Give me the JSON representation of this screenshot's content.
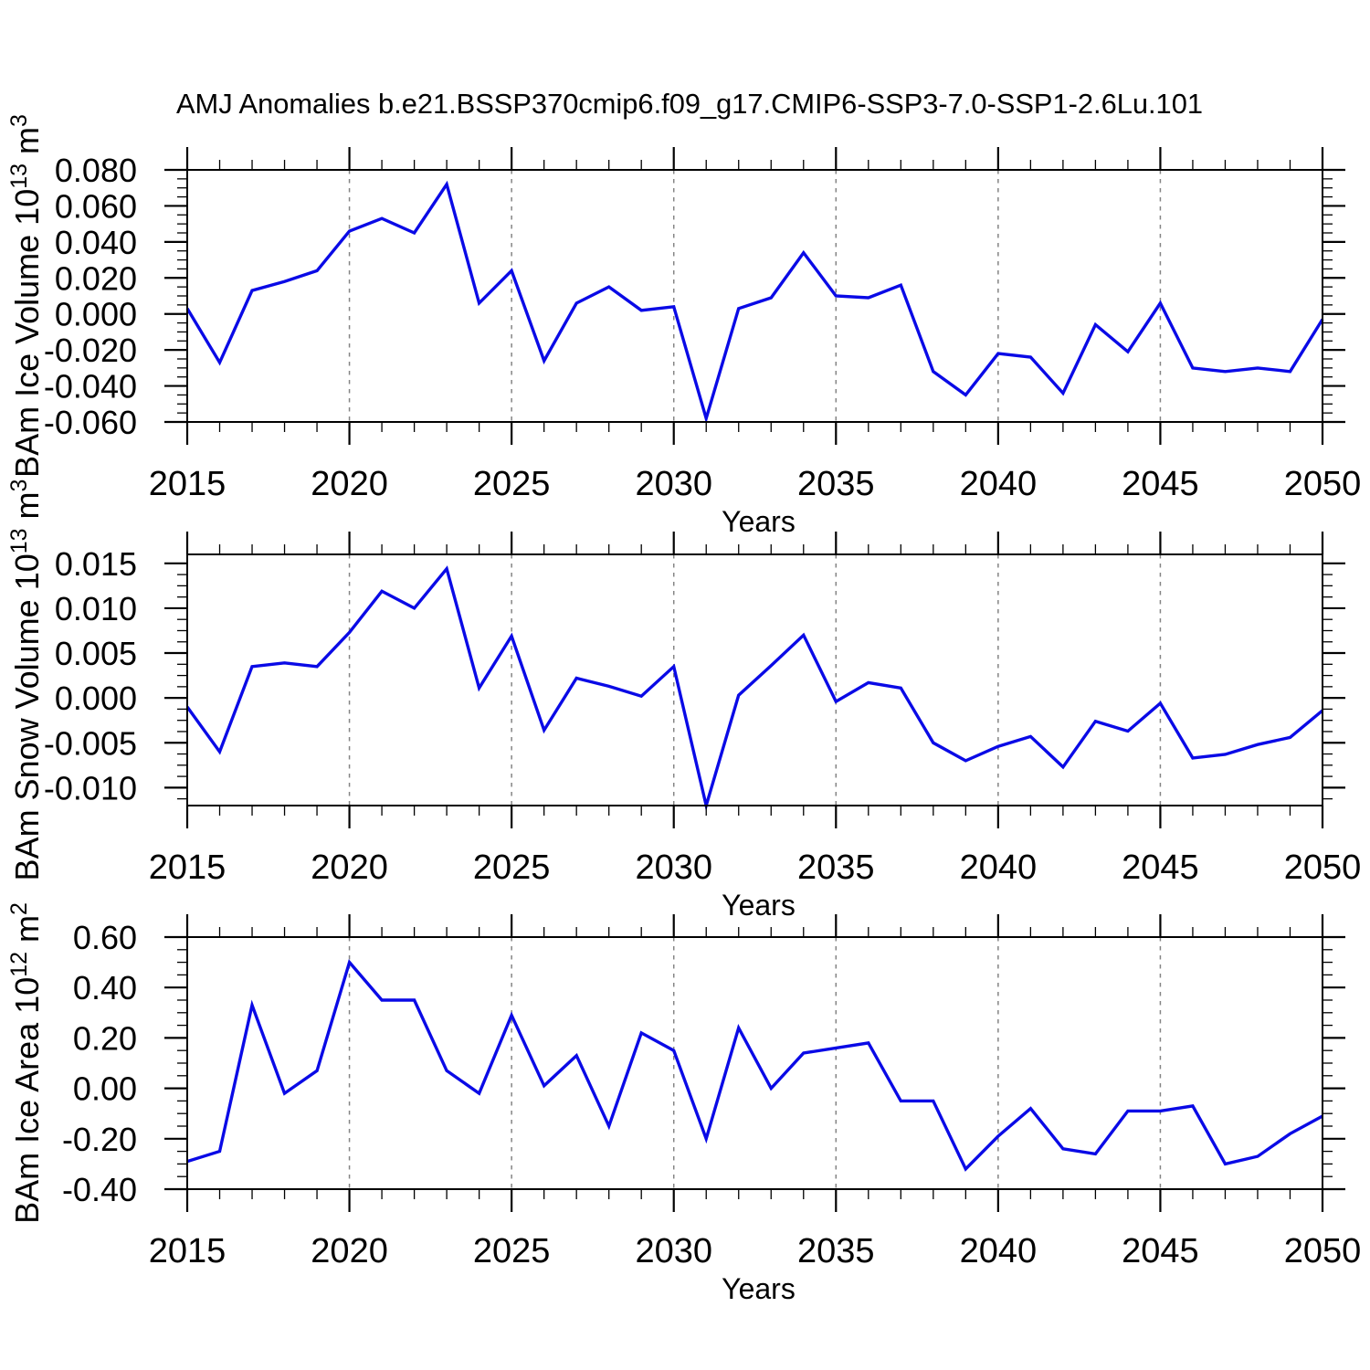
{
  "title": "AMJ Anomalies b.e21.BSSP370cmip6.f09_g17.CMIP6-SSP3-7.0-SSP1-2.6Lu.101",
  "colors": {
    "line": "#0a0ae6",
    "grid": "#848484",
    "axis": "#000000"
  },
  "xaxis": {
    "label": "Years",
    "range": [
      2015,
      2050
    ],
    "ticks": [
      2015,
      2020,
      2025,
      2030,
      2035,
      2040,
      2045,
      2050
    ],
    "tick_labels": [
      "2015",
      "2020",
      "2025",
      "2030",
      "2035",
      "2040",
      "2045",
      "2050"
    ],
    "minor_step": 1,
    "grid_years": [
      2020,
      2025,
      2030,
      2035,
      2040,
      2045
    ]
  },
  "chart_data": [
    {
      "type": "line",
      "name": "ice-volume",
      "ylabel": "BAm Ice Volume 10^13 m^3",
      "ylabel_parts": [
        {
          "t": "BAm Ice Volume 10"
        },
        {
          "sup": "13"
        },
        {
          "t": " m"
        },
        {
          "sup": "3"
        }
      ],
      "ylim": [
        -0.06,
        0.08
      ],
      "ytick_values": [
        0.08,
        0.06,
        0.04,
        0.02,
        0.0,
        -0.02,
        -0.04,
        -0.06
      ],
      "ytick_labels": [
        "0.080",
        "0.060",
        "0.040",
        "0.020",
        "0.000",
        "-0.020",
        "-0.040",
        "-0.060"
      ],
      "yminor_step": 0.005,
      "x": [
        2015,
        2016,
        2017,
        2018,
        2019,
        2020,
        2021,
        2022,
        2023,
        2024,
        2025,
        2026,
        2027,
        2028,
        2029,
        2030,
        2031,
        2032,
        2033,
        2034,
        2035,
        2036,
        2037,
        2038,
        2039,
        2040,
        2041,
        2042,
        2043,
        2044,
        2045,
        2046,
        2047,
        2048,
        2049,
        2050
      ],
      "values": [
        0.003,
        -0.027,
        0.013,
        0.018,
        0.024,
        0.046,
        0.053,
        0.045,
        0.072,
        0.006,
        0.024,
        -0.026,
        0.006,
        0.015,
        0.002,
        0.004,
        -0.058,
        0.003,
        0.009,
        0.034,
        0.01,
        0.009,
        0.016,
        -0.032,
        -0.045,
        -0.022,
        -0.024,
        -0.044,
        -0.006,
        -0.021,
        0.006,
        -0.03,
        -0.032,
        -0.03,
        -0.032,
        -0.003
      ]
    },
    {
      "type": "line",
      "name": "snow-volume",
      "ylabel": "BAm Snow Volume 10^13 m^3",
      "ylabel_parts": [
        {
          "t": "BAm Snow Volume 10"
        },
        {
          "sup": "13"
        },
        {
          "t": " m"
        },
        {
          "sup": "3"
        }
      ],
      "ylim": [
        -0.012,
        0.016
      ],
      "ytick_values": [
        0.015,
        0.01,
        0.005,
        0.0,
        -0.005,
        -0.01
      ],
      "ytick_labels": [
        "0.015",
        "0.010",
        "0.005",
        "0.000",
        "-0.005",
        "-0.010"
      ],
      "yminor_step": 0.00125,
      "x": [
        2015,
        2016,
        2017,
        2018,
        2019,
        2020,
        2021,
        2022,
        2023,
        2024,
        2025,
        2026,
        2027,
        2028,
        2029,
        2030,
        2031,
        2032,
        2033,
        2034,
        2035,
        2036,
        2037,
        2038,
        2039,
        2040,
        2041,
        2042,
        2043,
        2044,
        2045,
        2046,
        2047,
        2048,
        2049,
        2050
      ],
      "values": [
        -0.001,
        -0.006,
        0.0035,
        0.0039,
        0.0035,
        0.0073,
        0.0119,
        0.01,
        0.0144,
        0.0011,
        0.0069,
        -0.0036,
        0.0022,
        0.0013,
        0.0002,
        0.0035,
        -0.012,
        0.0003,
        0.0036,
        0.007,
        -0.0004,
        0.0017,
        0.0011,
        -0.005,
        -0.007,
        -0.0054,
        -0.0043,
        -0.0077,
        -0.0026,
        -0.0037,
        -0.0006,
        -0.0067,
        -0.0063,
        -0.0052,
        -0.0044,
        -0.0014
      ]
    },
    {
      "type": "line",
      "name": "ice-area",
      "ylabel": "BAm Ice Area 10^12 m^2",
      "ylabel_parts": [
        {
          "t": "BAm Ice Area 10"
        },
        {
          "sup": "12"
        },
        {
          "t": " m"
        },
        {
          "sup": "2"
        }
      ],
      "ylim": [
        -0.4,
        0.6
      ],
      "ytick_values": [
        0.6,
        0.4,
        0.2,
        0.0,
        -0.2,
        -0.4
      ],
      "ytick_labels": [
        "0.60",
        "0.40",
        "0.20",
        "0.00",
        "-0.20",
        "-0.40"
      ],
      "yminor_step": 0.05,
      "x": [
        2015,
        2016,
        2017,
        2018,
        2019,
        2020,
        2021,
        2022,
        2023,
        2024,
        2025,
        2026,
        2027,
        2028,
        2029,
        2030,
        2031,
        2032,
        2033,
        2034,
        2035,
        2036,
        2037,
        2038,
        2039,
        2040,
        2041,
        2042,
        2043,
        2044,
        2045,
        2046,
        2047,
        2048,
        2049,
        2050
      ],
      "values": [
        -0.29,
        -0.25,
        0.33,
        -0.02,
        0.07,
        0.5,
        0.35,
        0.35,
        0.07,
        -0.02,
        0.29,
        0.01,
        0.13,
        -0.15,
        0.22,
        0.15,
        -0.2,
        0.24,
        0.0,
        0.14,
        0.16,
        0.18,
        -0.05,
        -0.05,
        -0.32,
        -0.19,
        -0.08,
        -0.24,
        -0.26,
        -0.09,
        -0.09,
        -0.07,
        -0.3,
        -0.27,
        -0.18,
        -0.11
      ]
    }
  ]
}
